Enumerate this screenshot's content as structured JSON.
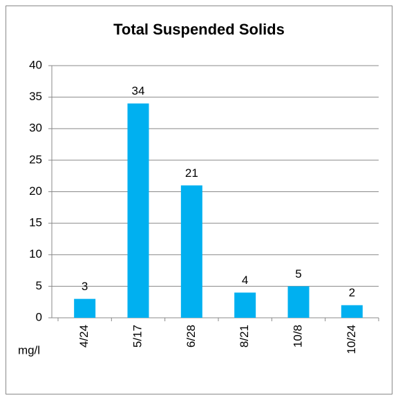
{
  "chart_data": {
    "type": "bar",
    "title": "Total Suspended Solids",
    "x_label": "mg/l",
    "categories": [
      "4/24",
      "5/17",
      "6/28",
      "8/21",
      "10/8",
      "10/24"
    ],
    "values": [
      3,
      34,
      21,
      4,
      5,
      2
    ],
    "color": "#00b0f0",
    "ylim": [
      0,
      40
    ],
    "yticks": [
      0,
      5,
      10,
      15,
      20,
      25,
      30,
      35,
      40
    ],
    "grid": true,
    "data_labels": true
  }
}
